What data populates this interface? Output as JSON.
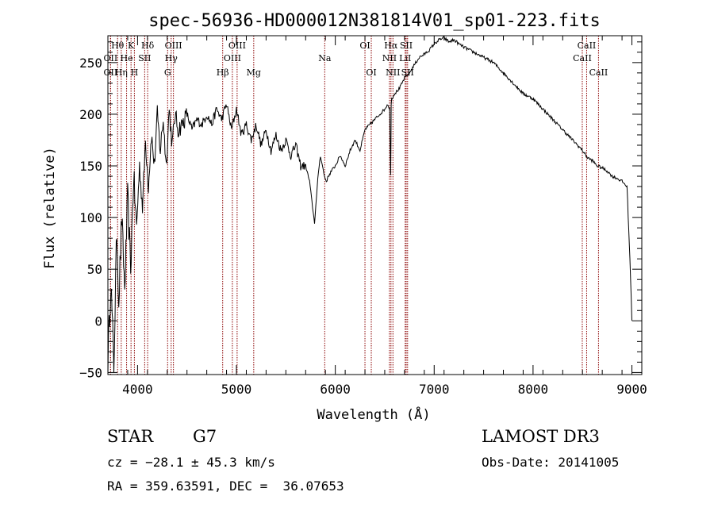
{
  "chart_data": {
    "type": "line",
    "title": "spec-56936-HD000012N381814V01_sp01-223.fits",
    "xlabel": "Wavelength (Å)",
    "ylabel": "Flux (relative)",
    "xlim": [
      3700,
      9100
    ],
    "ylim": [
      -52,
      276
    ],
    "xticks": [
      4000,
      5000,
      6000,
      7000,
      8000,
      9000
    ],
    "yticks": [
      -50,
      0,
      50,
      100,
      150,
      200,
      250
    ],
    "grid": false,
    "legend": "none",
    "line_color": "#000000",
    "marker_color": "#8b0000",
    "series": [
      {
        "name": "spectrum",
        "x": [
          3700,
          3730,
          3760,
          3790,
          3810,
          3840,
          3870,
          3900,
          3930,
          3960,
          3990,
          4020,
          4050,
          4080,
          4110,
          4140,
          4170,
          4200,
          4230,
          4260,
          4290,
          4320,
          4350,
          4380,
          4410,
          4450,
          4500,
          4550,
          4600,
          4650,
          4700,
          4750,
          4800,
          4850,
          4900,
          4950,
          5000,
          5050,
          5100,
          5150,
          5200,
          5250,
          5300,
          5350,
          5400,
          5450,
          5500,
          5550,
          5600,
          5650,
          5700,
          5740,
          5770,
          5790,
          5810,
          5830,
          5850,
          5870,
          5890,
          5910,
          5930,
          5960,
          6000,
          6050,
          6100,
          6150,
          6200,
          6250,
          6300,
          6350,
          6400,
          6450,
          6500,
          6530,
          6550,
          6560,
          6565,
          6570,
          6600,
          6650,
          6700,
          6750,
          6800,
          6850,
          6900,
          6950,
          7000,
          7050,
          7100,
          7150,
          7200,
          7250,
          7300,
          7400,
          7500,
          7600,
          7700,
          7800,
          7900,
          8000,
          8100,
          8200,
          8300,
          8400,
          8500,
          8550,
          8600,
          8650,
          8700,
          8750,
          8800,
          8850,
          8900,
          8950,
          8980,
          9000
        ],
        "y": [
          -40,
          40,
          -45,
          90,
          20,
          100,
          30,
          120,
          50,
          140,
          90,
          150,
          110,
          175,
          130,
          180,
          150,
          200,
          165,
          195,
          150,
          205,
          170,
          200,
          185,
          190,
          200,
          185,
          195,
          190,
          200,
          190,
          205,
          195,
          210,
          185,
          205,
          180,
          190,
          175,
          190,
          170,
          185,
          165,
          180,
          165,
          175,
          160,
          170,
          150,
          150,
          135,
          110,
          95,
          120,
          145,
          160,
          150,
          140,
          135,
          140,
          145,
          150,
          160,
          150,
          165,
          175,
          165,
          185,
          190,
          195,
          200,
          205,
          210,
          205,
          140,
          210,
          215,
          220,
          225,
          235,
          240,
          248,
          255,
          258,
          262,
          268,
          272,
          274,
          270,
          272,
          268,
          265,
          260,
          255,
          250,
          240,
          230,
          220,
          215,
          205,
          195,
          185,
          175,
          165,
          158,
          155,
          150,
          148,
          145,
          140,
          138,
          135,
          130,
          60,
          0
        ]
      }
    ],
    "line_markers": [
      {
        "name": "Hθ",
        "wave": 3798,
        "row": 1
      },
      {
        "name": "OII",
        "wave": 3727,
        "row": 2
      },
      {
        "name": "OII",
        "wave": 3727,
        "row": 3
      },
      {
        "name": "K",
        "wave": 3934,
        "row": 1
      },
      {
        "name": "He",
        "wave": 3889,
        "row": 2
      },
      {
        "name": "Hη",
        "wave": 3835,
        "row": 3
      },
      {
        "name": "SII",
        "wave": 4072,
        "row": 2
      },
      {
        "name": "H",
        "wave": 3968,
        "row": 3
      },
      {
        "name": "Hδ",
        "wave": 4102,
        "row": 1
      },
      {
        "name": "OIII",
        "wave": 4363,
        "row": 1
      },
      {
        "name": "Hγ",
        "wave": 4340,
        "row": 2
      },
      {
        "name": "G",
        "wave": 4304,
        "row": 3
      },
      {
        "name": "Hβ",
        "wave": 4861,
        "row": 3
      },
      {
        "name": "OIII",
        "wave": 5007,
        "row": 1
      },
      {
        "name": "OIII",
        "wave": 4959,
        "row": 2
      },
      {
        "name": "Mg",
        "wave": 5175,
        "row": 3
      },
      {
        "name": "Na",
        "wave": 5893,
        "row": 2
      },
      {
        "name": "OI",
        "wave": 6300,
        "row": 1
      },
      {
        "name": "OI",
        "wave": 6364,
        "row": 3
      },
      {
        "name": "Hα",
        "wave": 6563,
        "row": 1
      },
      {
        "name": "NII",
        "wave": 6548,
        "row": 2
      },
      {
        "name": "NII",
        "wave": 6583,
        "row": 3
      },
      {
        "name": "SII",
        "wave": 6717,
        "row": 1
      },
      {
        "name": "LiI",
        "wave": 6707,
        "row": 2
      },
      {
        "name": "SII",
        "wave": 6731,
        "row": 3
      },
      {
        "name": "CaII",
        "wave": 8542,
        "row": 1
      },
      {
        "name": "CaII",
        "wave": 8498,
        "row": 2
      },
      {
        "name": "CaII",
        "wave": 8662,
        "row": 3
      }
    ]
  },
  "info": {
    "class": "STAR",
    "subclass": "G7",
    "survey": "LAMOST DR3",
    "redshift": "cz = −28.1 ± 45.3 km/s",
    "obs_date": "Obs-Date: 20141005",
    "coords": "RA = 359.63591, DEC =  36.07653"
  }
}
